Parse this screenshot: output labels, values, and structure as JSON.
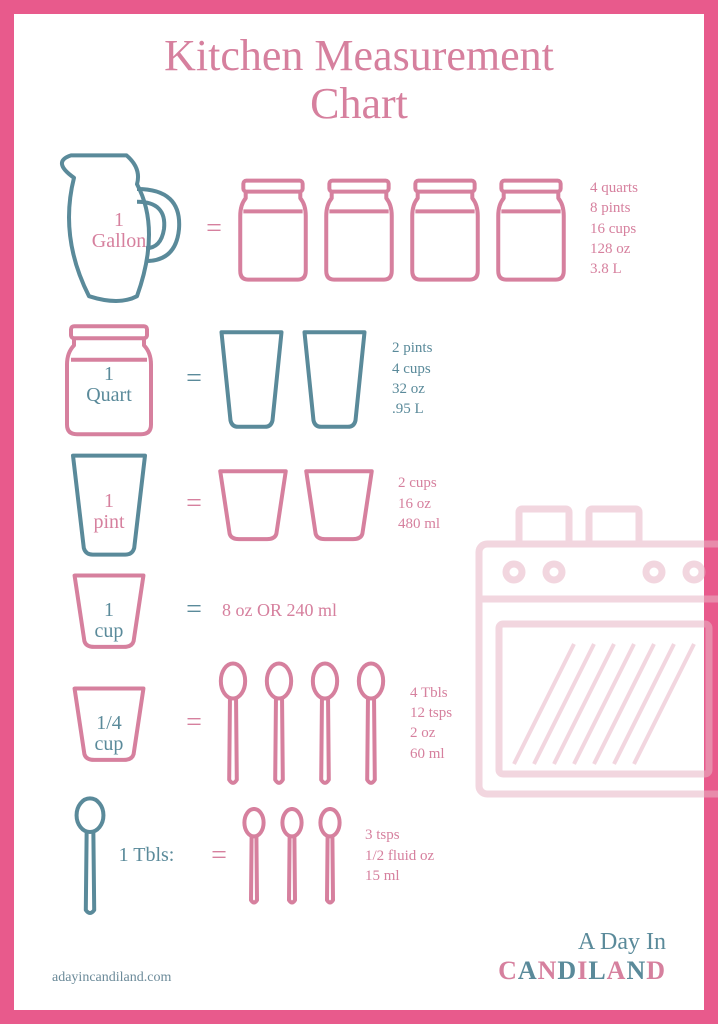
{
  "colors": {
    "pink": "#d6809e",
    "pink_border": "#e85a8c",
    "teal": "#5a8a9a",
    "teal_light": "#6b8a99",
    "pink_light": "#e8b5c6"
  },
  "title": "Kitchen Measurement\nChart",
  "rows": [
    {
      "id": "gallon",
      "left_label_1": "1",
      "left_label_2": "Gallon",
      "left_label_color": "#d6809e",
      "left_shape": "pitcher",
      "left_shape_color": "#5a8a9a",
      "equals_color": "#d6809e",
      "result_shape": "jar",
      "result_shape_color": "#d6809e",
      "result_count": 4,
      "conversions": [
        "4 quarts",
        "8 pints",
        "16 cups",
        "128 oz",
        "3.8 L"
      ],
      "conversions_color": "#d6809e"
    },
    {
      "id": "quart",
      "left_label_1": "1",
      "left_label_2": "Quart",
      "left_label_color": "#5a8a9a",
      "left_shape": "jar",
      "left_shape_color": "#d6809e",
      "equals_color": "#5a8a9a",
      "result_shape": "cup_tall",
      "result_shape_color": "#5a8a9a",
      "result_count": 2,
      "conversions": [
        "2 pints",
        "4 cups",
        "32 oz",
        ".95 L"
      ],
      "conversions_color": "#5a8a9a"
    },
    {
      "id": "pint",
      "left_label_1": "1",
      "left_label_2": "pint",
      "left_label_color": "#d6809e",
      "left_shape": "cup_tall",
      "left_shape_color": "#5a8a9a",
      "equals_color": "#d6809e",
      "result_shape": "cup_short",
      "result_shape_color": "#d6809e",
      "result_count": 2,
      "conversions": [
        "2 cups",
        "16 oz",
        "480 ml"
      ],
      "conversions_color": "#d6809e"
    },
    {
      "id": "cup",
      "left_label_1": "1",
      "left_label_2": "cup",
      "left_label_color": "#5a8a9a",
      "left_shape": "cup_short",
      "left_shape_color": "#d6809e",
      "equals_color": "#5a8a9a",
      "result_shape": "none",
      "result_count": 0,
      "conversions": [
        "8 oz OR 240 ml"
      ],
      "conversions_color": "#d6809e",
      "inline_text": true
    },
    {
      "id": "quarter_cup",
      "left_label_1": "1/4",
      "left_label_2": "cup",
      "left_label_color": "#5a8a9a",
      "left_shape": "cup_short",
      "left_shape_color": "#d6809e",
      "equals_color": "#d6809e",
      "result_shape": "spoon_large",
      "result_shape_color": "#d6809e",
      "result_count": 4,
      "conversions": [
        "4 Tbls",
        "12 tsps",
        "2 oz",
        "60 ml"
      ],
      "conversions_color": "#d6809e"
    },
    {
      "id": "tbls",
      "left_label_inline": "1 Tbls:",
      "left_label_color": "#5a8a9a",
      "left_shape": "spoon_large",
      "left_shape_color": "#5a8a9a",
      "equals_color": "#d6809e",
      "result_shape": "spoon_small",
      "result_shape_color": "#d6809e",
      "result_count": 3,
      "conversions": [
        "3 tsps",
        "1/2 fluid oz",
        "15 ml"
      ],
      "conversions_color": "#d6809e"
    }
  ],
  "footer_url": "adayincandiland.com",
  "logo_line1": "A Day In",
  "logo_line2": "CANDILAND"
}
